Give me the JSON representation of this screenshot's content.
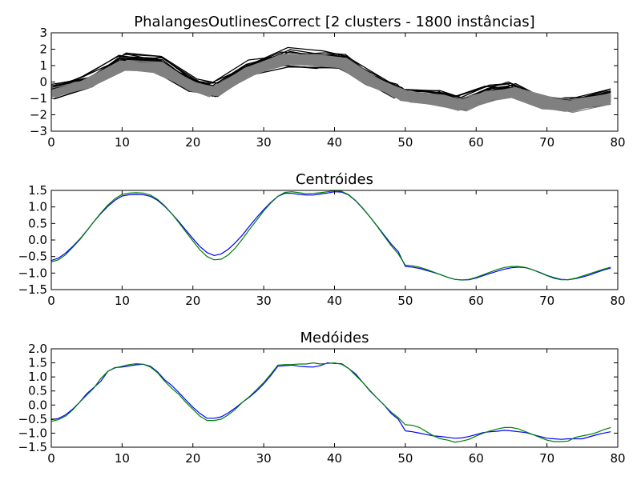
{
  "chart_data": [
    {
      "type": "line",
      "title": "PhalangesOutlinesCorrect [2 clusters - 1800 instâncias]",
      "xlabel": "",
      "ylabel": "",
      "xlim": [
        0,
        80
      ],
      "ylim": [
        -3,
        3
      ],
      "xticks": [
        0,
        10,
        20,
        30,
        40,
        50,
        60,
        70,
        80
      ],
      "yticks": [
        -3,
        -2,
        -1,
        0,
        1,
        2,
        3
      ],
      "grid": false,
      "legend": "none",
      "description_of_marks": "Many overlaid instance time series; black cluster and gray cluster",
      "series": [
        {
          "color": "#000000",
          "x": [
            0,
            5,
            10,
            15,
            20,
            23,
            28,
            33,
            38,
            41,
            45,
            49,
            50,
            55,
            58,
            62,
            65,
            70,
            73,
            79
          ],
          "values": [
            -0.6,
            0.0,
            1.2,
            1.1,
            -0.2,
            -0.5,
            0.8,
            1.5,
            1.4,
            1.3,
            0.2,
            -0.6,
            -0.8,
            -1.0,
            -1.3,
            -0.7,
            -0.5,
            -1.2,
            -1.4,
            -0.9
          ]
        },
        {
          "color": "#808080",
          "x": [
            0,
            5,
            10,
            15,
            20,
            23,
            28,
            33,
            38,
            41,
            45,
            49,
            50,
            55,
            58,
            62,
            65,
            70,
            73,
            79
          ],
          "values": [
            -0.7,
            -0.1,
            1.0,
            0.9,
            -0.3,
            -0.6,
            0.7,
            1.4,
            1.3,
            1.2,
            0.1,
            -0.7,
            -0.9,
            -1.1,
            -1.4,
            -0.8,
            -0.6,
            -1.3,
            -1.5,
            -1.0
          ]
        }
      ]
    },
    {
      "type": "line",
      "title": "Centróides",
      "xlabel": "",
      "ylabel": "",
      "xlim": [
        0,
        80
      ],
      "ylim": [
        -1.5,
        1.5
      ],
      "xticks": [
        0,
        10,
        20,
        30,
        40,
        50,
        60,
        70,
        80
      ],
      "yticks": [
        -1.5,
        -1.0,
        -0.5,
        0.0,
        0.5,
        1.0,
        1.5
      ],
      "grid": false,
      "legend": "none",
      "series": [
        {
          "color": "#0000ff",
          "x": [
            0,
            1,
            2,
            3,
            4,
            5,
            6,
            7,
            8,
            9,
            10,
            11,
            12,
            13,
            14,
            15,
            16,
            17,
            18,
            19,
            20,
            21,
            22,
            23,
            24,
            25,
            26,
            27,
            28,
            29,
            30,
            31,
            32,
            33,
            34,
            35,
            36,
            37,
            38,
            39,
            40,
            41,
            42,
            43,
            44,
            45,
            46,
            47,
            48,
            49,
            50,
            51,
            52,
            53,
            54,
            55,
            56,
            57,
            58,
            59,
            60,
            61,
            62,
            63,
            64,
            65,
            66,
            67,
            68,
            69,
            70,
            71,
            72,
            73,
            74,
            75,
            76,
            77,
            78,
            79
          ],
          "values": [
            -0.62,
            -0.55,
            -0.4,
            -0.2,
            0.02,
            0.28,
            0.55,
            0.8,
            1.02,
            1.2,
            1.33,
            1.37,
            1.38,
            1.37,
            1.32,
            1.2,
            1.02,
            0.8,
            0.56,
            0.3,
            0.04,
            -0.2,
            -0.38,
            -0.47,
            -0.42,
            -0.28,
            -0.08,
            0.15,
            0.42,
            0.68,
            0.92,
            1.14,
            1.32,
            1.41,
            1.41,
            1.38,
            1.36,
            1.36,
            1.39,
            1.42,
            1.46,
            1.45,
            1.36,
            1.18,
            0.95,
            0.7,
            0.43,
            0.15,
            -0.12,
            -0.35,
            -0.8,
            -0.82,
            -0.86,
            -0.92,
            -0.98,
            -1.05,
            -1.13,
            -1.19,
            -1.21,
            -1.2,
            -1.15,
            -1.08,
            -1.01,
            -0.94,
            -0.88,
            -0.84,
            -0.82,
            -0.84,
            -0.9,
            -0.98,
            -1.07,
            -1.14,
            -1.19,
            -1.2,
            -1.17,
            -1.12,
            -1.06,
            -0.98,
            -0.91,
            -0.85
          ]
        },
        {
          "color": "#008000",
          "x": [
            0,
            1,
            2,
            3,
            4,
            5,
            6,
            7,
            8,
            9,
            10,
            11,
            12,
            13,
            14,
            15,
            16,
            17,
            18,
            19,
            20,
            21,
            22,
            23,
            24,
            25,
            26,
            27,
            28,
            29,
            30,
            31,
            32,
            33,
            34,
            35,
            36,
            37,
            38,
            39,
            40,
            41,
            42,
            43,
            44,
            45,
            46,
            47,
            48,
            49,
            50,
            51,
            52,
            53,
            54,
            55,
            56,
            57,
            58,
            59,
            60,
            61,
            62,
            63,
            64,
            65,
            66,
            67,
            68,
            69,
            70,
            71,
            72,
            73,
            74,
            75,
            76,
            77,
            78,
            79
          ],
          "values": [
            -0.66,
            -0.6,
            -0.45,
            -0.23,
            0.0,
            0.27,
            0.55,
            0.82,
            1.06,
            1.25,
            1.38,
            1.42,
            1.43,
            1.42,
            1.36,
            1.23,
            1.04,
            0.8,
            0.53,
            0.25,
            -0.03,
            -0.3,
            -0.5,
            -0.6,
            -0.58,
            -0.45,
            -0.24,
            0.03,
            0.32,
            0.6,
            0.88,
            1.12,
            1.32,
            1.44,
            1.46,
            1.43,
            1.4,
            1.41,
            1.43,
            1.46,
            1.49,
            1.47,
            1.37,
            1.19,
            0.96,
            0.7,
            0.42,
            0.12,
            -0.17,
            -0.42,
            -0.76,
            -0.78,
            -0.82,
            -0.89,
            -0.97,
            -1.05,
            -1.13,
            -1.19,
            -1.21,
            -1.19,
            -1.13,
            -1.05,
            -0.97,
            -0.89,
            -0.83,
            -0.8,
            -0.8,
            -0.83,
            -0.9,
            -0.99,
            -1.08,
            -1.16,
            -1.2,
            -1.2,
            -1.16,
            -1.09,
            -1.02,
            -0.95,
            -0.88,
            -0.82
          ]
        }
      ]
    },
    {
      "type": "line",
      "title": "Medóides",
      "xlabel": "",
      "ylabel": "",
      "xlim": [
        0,
        80
      ],
      "ylim": [
        -1.5,
        2.0
      ],
      "xticks": [
        0,
        10,
        20,
        30,
        40,
        50,
        60,
        70,
        80
      ],
      "yticks": [
        -1.5,
        -1.0,
        -0.5,
        0.0,
        0.5,
        1.0,
        1.5,
        2.0
      ],
      "grid": false,
      "legend": "none",
      "series": [
        {
          "color": "#0000ff",
          "x": [
            0,
            1,
            2,
            3,
            4,
            5,
            6,
            7,
            8,
            9,
            10,
            11,
            12,
            13,
            14,
            15,
            16,
            17,
            18,
            19,
            20,
            21,
            22,
            23,
            24,
            25,
            26,
            27,
            28,
            29,
            30,
            31,
            32,
            33,
            34,
            35,
            36,
            37,
            38,
            39,
            40,
            41,
            42,
            43,
            44,
            45,
            46,
            47,
            48,
            49,
            50,
            51,
            52,
            53,
            54,
            55,
            56,
            57,
            58,
            59,
            60,
            61,
            62,
            63,
            64,
            65,
            66,
            67,
            68,
            69,
            70,
            71,
            72,
            73,
            74,
            75,
            76,
            77,
            78,
            79
          ],
          "values": [
            -0.52,
            -0.48,
            -0.35,
            -0.15,
            0.1,
            0.4,
            0.62,
            0.85,
            1.2,
            1.33,
            1.35,
            1.39,
            1.43,
            1.45,
            1.38,
            1.18,
            0.9,
            0.7,
            0.45,
            0.18,
            -0.08,
            -0.3,
            -0.47,
            -0.47,
            -0.42,
            -0.28,
            -0.1,
            0.1,
            0.28,
            0.5,
            0.75,
            1.05,
            1.38,
            1.4,
            1.42,
            1.38,
            1.36,
            1.35,
            1.4,
            1.5,
            1.48,
            1.47,
            1.3,
            1.1,
            0.8,
            0.5,
            0.25,
            0.0,
            -0.3,
            -0.5,
            -0.92,
            -0.95,
            -1.0,
            -1.05,
            -1.1,
            -1.12,
            -1.15,
            -1.18,
            -1.17,
            -1.12,
            -1.05,
            -0.98,
            -0.95,
            -0.93,
            -0.9,
            -0.92,
            -0.95,
            -0.98,
            -1.05,
            -1.12,
            -1.18,
            -1.2,
            -1.22,
            -1.2,
            -1.2,
            -1.2,
            -1.13,
            -1.06,
            -1.0,
            -0.95
          ]
        },
        {
          "color": "#008000",
          "x": [
            0,
            1,
            2,
            3,
            4,
            5,
            6,
            7,
            8,
            9,
            10,
            11,
            12,
            13,
            14,
            15,
            16,
            17,
            18,
            19,
            20,
            21,
            22,
            23,
            24,
            25,
            26,
            27,
            28,
            29,
            30,
            31,
            32,
            33,
            34,
            35,
            36,
            37,
            38,
            39,
            40,
            41,
            42,
            43,
            44,
            45,
            46,
            47,
            48,
            49,
            50,
            51,
            52,
            53,
            54,
            55,
            56,
            57,
            58,
            59,
            60,
            61,
            62,
            63,
            64,
            65,
            66,
            67,
            68,
            69,
            70,
            71,
            72,
            73,
            74,
            75,
            76,
            77,
            78,
            79
          ],
          "values": [
            -0.58,
            -0.52,
            -0.4,
            -0.18,
            0.1,
            0.35,
            0.6,
            0.95,
            1.2,
            1.32,
            1.38,
            1.44,
            1.47,
            1.45,
            1.35,
            1.15,
            0.85,
            0.6,
            0.38,
            0.1,
            -0.15,
            -0.4,
            -0.55,
            -0.55,
            -0.5,
            -0.35,
            -0.15,
            0.1,
            0.3,
            0.55,
            0.8,
            1.1,
            1.42,
            1.44,
            1.44,
            1.46,
            1.46,
            1.5,
            1.46,
            1.48,
            1.5,
            1.45,
            1.3,
            1.05,
            0.8,
            0.52,
            0.25,
            0.0,
            -0.25,
            -0.45,
            -0.7,
            -0.72,
            -0.8,
            -0.95,
            -1.1,
            -1.2,
            -1.25,
            -1.32,
            -1.28,
            -1.22,
            -1.1,
            -1.0,
            -0.92,
            -0.85,
            -0.8,
            -0.8,
            -0.85,
            -0.95,
            -1.05,
            -1.15,
            -1.25,
            -1.3,
            -1.3,
            -1.28,
            -1.15,
            -1.1,
            -1.05,
            -0.98,
            -0.88,
            -0.8
          ]
        }
      ]
    }
  ]
}
